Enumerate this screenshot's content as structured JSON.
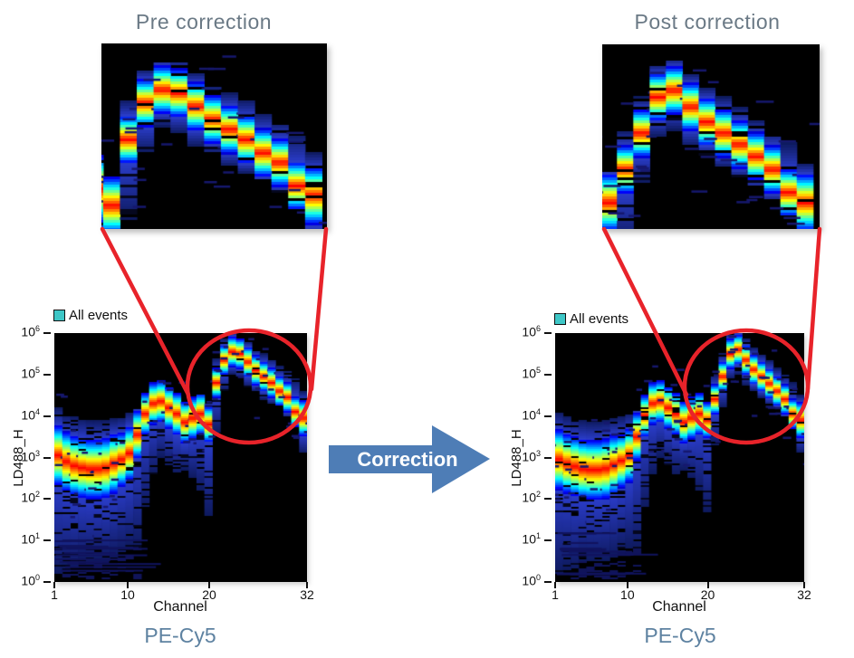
{
  "figure": {
    "arrow_label": "Correction",
    "arrow_color": "#4E7DB6",
    "accent_red": "#E8232A",
    "title_color": "#6A7985",
    "footer_color": "#5E82A1",
    "plot_background": "#000000"
  },
  "panels": [
    {
      "title": "Pre correction",
      "legend_label": "All events",
      "legend_swatch_color": "#3EC7C7",
      "footer": "PE-Cy5"
    },
    {
      "title": "Post correction",
      "legend_label": "All events",
      "legend_swatch_color": "#3EC7C7",
      "footer": "PE-Cy5"
    }
  ],
  "chart_data": [
    {
      "type": "heatmap",
      "title": "Pre correction",
      "xlabel": "Channel",
      "ylabel": "LD488_H",
      "x_ticks": [
        1,
        10,
        20,
        32
      ],
      "y_tick_exponents": [
        6,
        5,
        4,
        3,
        2,
        1,
        0
      ],
      "xlim": [
        1,
        32
      ],
      "ylim_log10": [
        0,
        6
      ],
      "legend": [
        "All events"
      ],
      "stain": "PE-Cy5",
      "description": "Spectral flow density plot; per-channel ridge center of LD488_H signal (log10), rainbow spread and blue tail extents",
      "channels": [
        1,
        2,
        3,
        4,
        5,
        6,
        7,
        8,
        9,
        10,
        11,
        12,
        13,
        14,
        15,
        16,
        17,
        18,
        19,
        20,
        21,
        22,
        23,
        24,
        25,
        26,
        27,
        28,
        29,
        30,
        31,
        32
      ],
      "ridge_center_log10": [
        3.05,
        2.9,
        2.8,
        2.75,
        2.72,
        2.72,
        2.75,
        2.85,
        2.95,
        3.1,
        3.55,
        4.05,
        4.3,
        4.35,
        4.2,
        4.05,
        3.85,
        3.95,
        4.05,
        3.8,
        4.8,
        5.35,
        5.55,
        5.5,
        5.3,
        5.1,
        4.95,
        4.8,
        4.6,
        4.45,
        4.1,
        3.95
      ],
      "ridge_spread_log10": [
        0.5,
        0.5,
        0.5,
        0.5,
        0.5,
        0.5,
        0.5,
        0.5,
        0.45,
        0.45,
        0.4,
        0.35,
        0.35,
        0.35,
        0.35,
        0.35,
        0.35,
        0.35,
        0.35,
        0.3,
        0.25,
        0.25,
        0.25,
        0.25,
        0.25,
        0.25,
        0.25,
        0.25,
        0.25,
        0.25,
        0.25,
        0.3
      ],
      "tail_low_log10": [
        0.2,
        0.3,
        0.3,
        0.5,
        0.5,
        0.5,
        0.5,
        0.6,
        0.7,
        0.8,
        0.8,
        1.8,
        2.6,
        3.0,
        2.8,
        2.6,
        2.7,
        2.5,
        2.2,
        1.6,
        3.6,
        4.6,
        5.0,
        4.9,
        4.7,
        4.6,
        4.4,
        4.3,
        4.2,
        4.0,
        3.8,
        3.1
      ],
      "tail_high_log10": [
        4.2,
        4.05,
        4.0,
        3.95,
        3.9,
        3.9,
        3.9,
        3.95,
        4.0,
        4.1,
        4.15,
        4.5,
        4.65,
        4.7,
        4.6,
        4.5,
        4.35,
        4.4,
        4.5,
        4.3,
        5.4,
        5.85,
        6.0,
        5.95,
        5.8,
        5.6,
        5.5,
        5.4,
        5.2,
        5.1,
        4.9,
        4.6
      ],
      "highlight": {
        "channel_range": [
          20,
          32
        ],
        "log10_range": [
          3.5,
          6.2
        ]
      },
      "inset_window": {
        "channel_range": [
          19.4,
          32.8
        ],
        "log10_range": [
          3.45,
          6.25
        ]
      }
    },
    {
      "type": "heatmap",
      "title": "Post correction",
      "xlabel": "Channel",
      "ylabel": "LD488_H",
      "x_ticks": [
        1,
        10,
        20,
        32
      ],
      "y_tick_exponents": [
        6,
        5,
        4,
        3,
        2,
        1,
        0
      ],
      "xlim": [
        1,
        32
      ],
      "ylim_log10": [
        0,
        6
      ],
      "legend": [
        "All events"
      ],
      "stain": "PE-Cy5",
      "description": "Spectral flow density plot after correction; per-channel ridge center of LD488_H signal (log10), rainbow spread and blue tail extents",
      "channels": [
        1,
        2,
        3,
        4,
        5,
        6,
        7,
        8,
        9,
        10,
        11,
        12,
        13,
        14,
        15,
        16,
        17,
        18,
        19,
        20,
        21,
        22,
        23,
        24,
        25,
        26,
        27,
        28,
        29,
        30,
        31,
        32
      ],
      "ridge_center_log10": [
        2.95,
        2.85,
        2.78,
        2.72,
        2.7,
        2.7,
        2.73,
        2.82,
        2.92,
        3.05,
        3.5,
        4.0,
        4.3,
        4.35,
        4.2,
        4.05,
        3.85,
        3.95,
        4.05,
        3.9,
        4.4,
        4.95,
        5.5,
        5.6,
        5.35,
        5.12,
        4.95,
        4.78,
        4.6,
        4.4,
        4.05,
        3.9
      ],
      "ridge_spread_log10": [
        0.5,
        0.5,
        0.5,
        0.5,
        0.5,
        0.5,
        0.5,
        0.5,
        0.45,
        0.45,
        0.4,
        0.35,
        0.35,
        0.35,
        0.35,
        0.35,
        0.35,
        0.35,
        0.35,
        0.3,
        0.25,
        0.25,
        0.25,
        0.25,
        0.25,
        0.25,
        0.25,
        0.25,
        0.25,
        0.25,
        0.25,
        0.3
      ],
      "tail_low_log10": [
        0.2,
        0.3,
        0.3,
        0.5,
        0.5,
        0.5,
        0.5,
        0.6,
        0.7,
        0.8,
        0.8,
        1.8,
        2.6,
        3.0,
        2.8,
        2.6,
        2.7,
        2.5,
        2.2,
        1.7,
        3.3,
        4.2,
        4.9,
        5.0,
        4.75,
        4.6,
        4.45,
        4.3,
        4.15,
        3.95,
        3.7,
        3.1
      ],
      "tail_high_log10": [
        4.1,
        4.0,
        3.95,
        3.9,
        3.88,
        3.88,
        3.9,
        3.95,
        4.0,
        4.1,
        4.15,
        4.5,
        4.65,
        4.7,
        4.6,
        4.5,
        4.35,
        4.4,
        4.5,
        4.35,
        5.0,
        5.5,
        5.95,
        6.05,
        5.85,
        5.65,
        5.5,
        5.35,
        5.15,
        5.0,
        4.8,
        4.5
      ],
      "highlight": {
        "channel_range": [
          20,
          32
        ],
        "log10_range": [
          3.5,
          6.2
        ]
      },
      "inset_window": {
        "channel_range": [
          19.6,
          32.9
        ],
        "log10_range": [
          3.5,
          6.3
        ]
      }
    }
  ]
}
